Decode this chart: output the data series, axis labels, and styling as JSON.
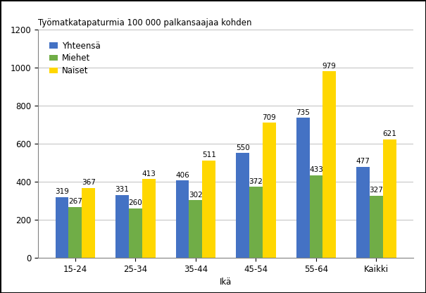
{
  "categories": [
    "15-24",
    "25-34",
    "35-44",
    "45-54",
    "55-64",
    "Kaikki"
  ],
  "series": [
    {
      "name": "Yhteensä",
      "color": "#4472C4",
      "values": [
        319,
        331,
        406,
        550,
        735,
        477
      ]
    },
    {
      "name": "Miehet",
      "color": "#70AD47",
      "values": [
        267,
        260,
        302,
        372,
        433,
        327
      ]
    },
    {
      "name": "Naiset",
      "color": "#FFD700",
      "values": [
        367,
        413,
        511,
        709,
        979,
        621
      ]
    }
  ],
  "chart_title": "Työmatkatapaturmia 100 000 palkansaajaa kohden",
  "xlabel": "Ikä",
  "ylim": [
    0,
    1200
  ],
  "yticks": [
    0,
    200,
    400,
    600,
    800,
    1000,
    1200
  ],
  "bar_width": 0.22,
  "background_color": "#FFFFFF",
  "outer_background": "#FFFFFF",
  "grid_color": "#C0C0C0",
  "label_fontsize": 7.5,
  "title_fontsize": 8.5,
  "axis_label_fontsize": 8.5,
  "tick_fontsize": 8.5,
  "legend_fontsize": 8.5,
  "border_color": "#000000"
}
